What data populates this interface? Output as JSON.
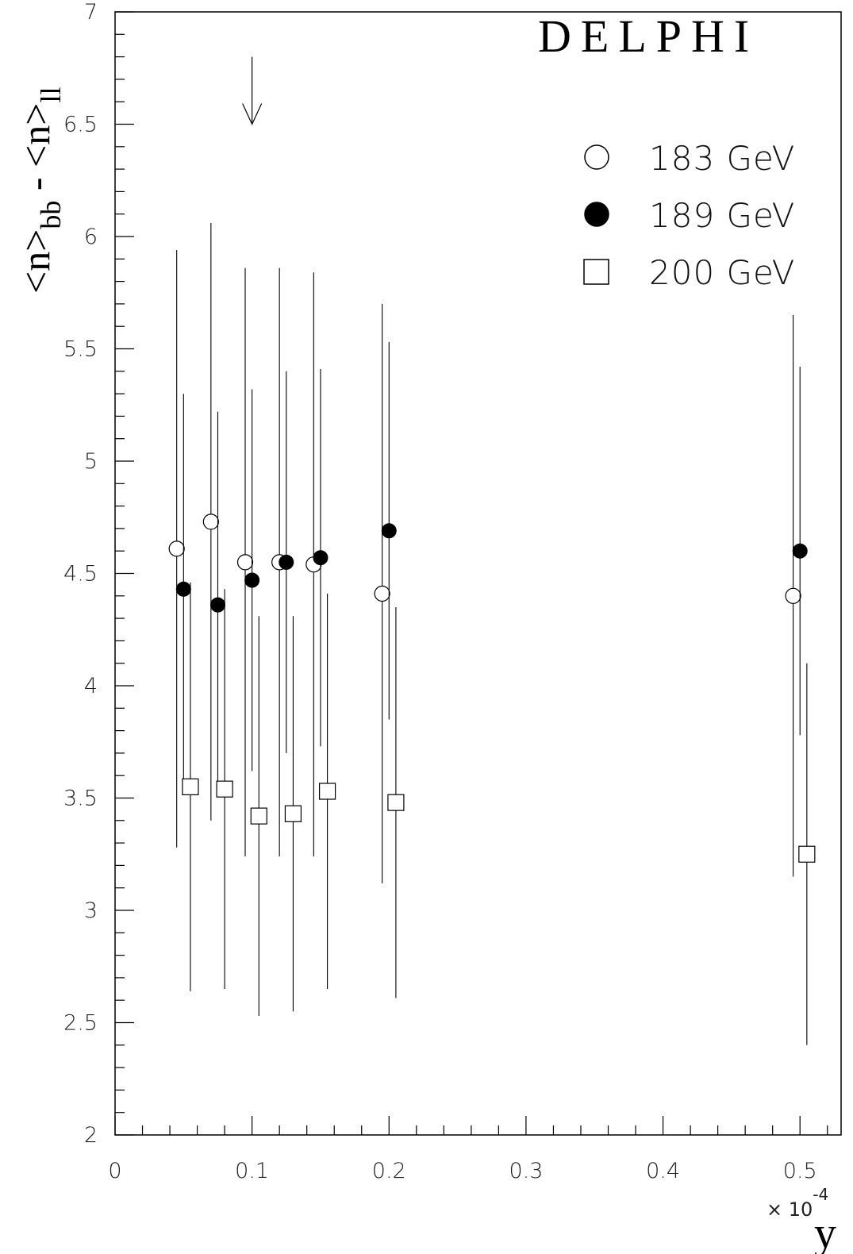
{
  "chart_data": {
    "type": "scatter",
    "title": "DELPHI",
    "ylabel_main": "<n>",
    "ylabel_sub1": "bb",
    "ylabel_mid": " - <n>",
    "ylabel_sub2": "ll",
    "xlabel": "y",
    "x_multiplier_base": "× 10",
    "x_multiplier_exp": "-4",
    "xlim": [
      0,
      0.53
    ],
    "ylim": [
      2,
      7
    ],
    "x_ticks": [
      {
        "value": 0,
        "label": "0"
      },
      {
        "value": 0.1,
        "label": "0.1"
      },
      {
        "value": 0.2,
        "label": "0.2"
      },
      {
        "value": 0.3,
        "label": "0.3"
      },
      {
        "value": 0.4,
        "label": "0.4"
      },
      {
        "value": 0.5,
        "label": "0.5"
      }
    ],
    "y_ticks": [
      {
        "value": 2,
        "label": "2"
      },
      {
        "value": 2.5,
        "label": "2.5"
      },
      {
        "value": 3,
        "label": "3"
      },
      {
        "value": 3.5,
        "label": "3.5"
      },
      {
        "value": 4,
        "label": "4"
      },
      {
        "value": 4.5,
        "label": "4.5"
      },
      {
        "value": 5,
        "label": "5"
      },
      {
        "value": 5.5,
        "label": "5.5"
      },
      {
        "value": 6,
        "label": "6"
      },
      {
        "value": 6.5,
        "label": "6.5"
      },
      {
        "value": 7,
        "label": "7"
      }
    ],
    "arrow": {
      "x": 0.1,
      "y_top": 6.8,
      "y_bottom": 6.5
    },
    "legend_position": "top-right",
    "series": [
      {
        "name": "183 GeV",
        "marker": "open-circle",
        "points": [
          {
            "x": 0.045,
            "y": 4.61,
            "err_low": 3.28,
            "err_high": 5.94
          },
          {
            "x": 0.07,
            "y": 4.73,
            "err_low": 3.4,
            "err_high": 6.06
          },
          {
            "x": 0.095,
            "y": 4.55,
            "err_low": 3.24,
            "err_high": 5.86
          },
          {
            "x": 0.12,
            "y": 4.55,
            "err_low": 3.24,
            "err_high": 5.86
          },
          {
            "x": 0.145,
            "y": 4.54,
            "err_low": 3.24,
            "err_high": 5.84
          },
          {
            "x": 0.195,
            "y": 4.41,
            "err_low": 3.12,
            "err_high": 5.7
          },
          {
            "x": 0.495,
            "y": 4.4,
            "err_low": 3.15,
            "err_high": 5.65
          }
        ]
      },
      {
        "name": "189 GeV",
        "marker": "filled-circle",
        "points": [
          {
            "x": 0.05,
            "y": 4.43,
            "err_low": 3.56,
            "err_high": 5.3
          },
          {
            "x": 0.075,
            "y": 4.36,
            "err_low": 3.52,
            "err_high": 5.22
          },
          {
            "x": 0.1,
            "y": 4.47,
            "err_low": 3.62,
            "err_high": 5.32
          },
          {
            "x": 0.125,
            "y": 4.55,
            "err_low": 3.7,
            "err_high": 5.4
          },
          {
            "x": 0.15,
            "y": 4.57,
            "err_low": 3.73,
            "err_high": 5.41
          },
          {
            "x": 0.2,
            "y": 4.69,
            "err_low": 3.85,
            "err_high": 5.53
          },
          {
            "x": 0.5,
            "y": 4.6,
            "err_low": 3.78,
            "err_high": 5.42
          }
        ]
      },
      {
        "name": "200 GeV",
        "marker": "open-square",
        "points": [
          {
            "x": 0.055,
            "y": 3.55,
            "err_low": 2.64,
            "err_high": 4.46
          },
          {
            "x": 0.08,
            "y": 3.54,
            "err_low": 2.65,
            "err_high": 4.43
          },
          {
            "x": 0.105,
            "y": 3.42,
            "err_low": 2.53,
            "err_high": 4.31
          },
          {
            "x": 0.13,
            "y": 3.43,
            "err_low": 2.55,
            "err_high": 4.31
          },
          {
            "x": 0.155,
            "y": 3.53,
            "err_low": 2.65,
            "err_high": 4.41
          },
          {
            "x": 0.205,
            "y": 3.48,
            "err_low": 2.61,
            "err_high": 4.35
          },
          {
            "x": 0.505,
            "y": 3.25,
            "err_low": 2.4,
            "err_high": 4.1
          }
        ]
      }
    ]
  }
}
